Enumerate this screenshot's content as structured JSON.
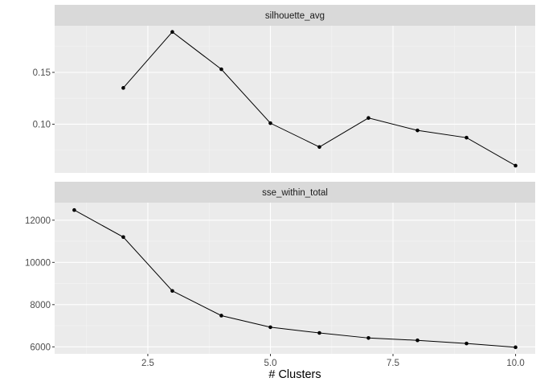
{
  "chart_data": {
    "type": "line",
    "xlabel": "# Clusters",
    "x_range": [
      0.6,
      10.4
    ],
    "x_ticks": [
      {
        "value": 2.5,
        "label": "2.5"
      },
      {
        "value": 5.0,
        "label": "5.0"
      },
      {
        "value": 7.5,
        "label": "7.5"
      },
      {
        "value": 10.0,
        "label": "10.0"
      }
    ],
    "x_minor_ticks": [
      1.25,
      3.75,
      6.25,
      8.75
    ],
    "grid": true,
    "facets": [
      {
        "strip": "silhouette_avg",
        "y_range": [
          0.053,
          0.195
        ],
        "y_ticks": [
          {
            "value": 0.1,
            "label": "0.10"
          },
          {
            "value": 0.15,
            "label": "0.15"
          }
        ],
        "y_minor_ticks": [
          0.075,
          0.125,
          0.175
        ],
        "points": [
          {
            "x": 2,
            "y": 0.135
          },
          {
            "x": 3,
            "y": 0.189
          },
          {
            "x": 4,
            "y": 0.153
          },
          {
            "x": 5,
            "y": 0.101
          },
          {
            "x": 6,
            "y": 0.078
          },
          {
            "x": 7,
            "y": 0.106
          },
          {
            "x": 8,
            "y": 0.094
          },
          {
            "x": 9,
            "y": 0.087
          },
          {
            "x": 10,
            "y": 0.06
          }
        ]
      },
      {
        "strip": "sse_within_total",
        "y_range": [
          5670,
          12830
        ],
        "y_ticks": [
          {
            "value": 6000,
            "label": "6000"
          },
          {
            "value": 8000,
            "label": "8000"
          },
          {
            "value": 10000,
            "label": "10000"
          },
          {
            "value": 12000,
            "label": "12000"
          }
        ],
        "y_minor_ticks": [
          7000,
          9000,
          11000
        ],
        "points": [
          {
            "x": 1,
            "y": 12480
          },
          {
            "x": 2,
            "y": 11200
          },
          {
            "x": 3,
            "y": 8650
          },
          {
            "x": 4,
            "y": 7480
          },
          {
            "x": 5,
            "y": 6930
          },
          {
            "x": 6,
            "y": 6660
          },
          {
            "x": 7,
            "y": 6420
          },
          {
            "x": 8,
            "y": 6310
          },
          {
            "x": 9,
            "y": 6160
          },
          {
            "x": 10,
            "y": 5980
          }
        ]
      }
    ]
  }
}
